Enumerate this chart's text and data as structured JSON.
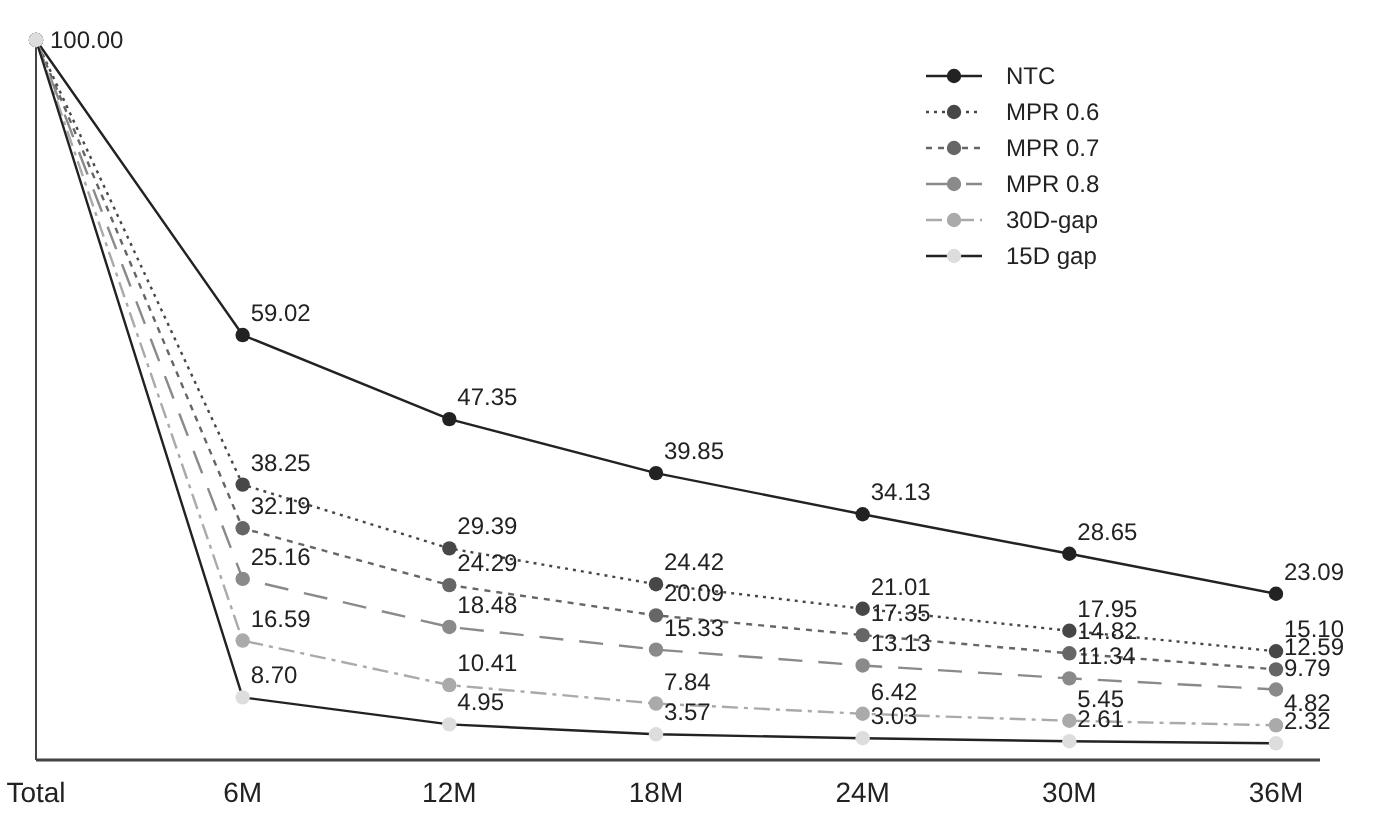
{
  "chart_data": {
    "type": "line",
    "categories": [
      "Total",
      "6M",
      "12M",
      "18M",
      "24M",
      "30M",
      "36M"
    ],
    "legend": "top right",
    "marker": "circle",
    "tick_labels": "x",
    "series": [
      {
        "name": "NTC",
        "color": "#222222",
        "line_style": "solid",
        "values": [
          100,
          59.02,
          47.35,
          39.85,
          34.13,
          28.65,
          23.09
        ],
        "value_labels": [
          "100.00",
          "59.02",
          "47.35",
          "39.85",
          "34.13",
          "28.65",
          "23.09"
        ]
      },
      {
        "name": "MPR 0.6",
        "color": "#474747",
        "line_style": "dotted",
        "values": [
          100,
          38.25,
          29.39,
          24.42,
          21.01,
          17.95,
          15.1
        ],
        "value_labels": [
          null,
          "38.25",
          "29.39",
          "24.42",
          "21.01",
          "17.95",
          "15.10"
        ]
      },
      {
        "name": "MPR 0.7",
        "color": "#666666",
        "line_style": "dashed",
        "values": [
          100,
          32.19,
          24.29,
          20.09,
          17.35,
          14.82,
          12.59
        ],
        "value_labels": [
          null,
          "32.19",
          "24.29",
          "20.09",
          "17.35",
          "14.82",
          "12.59"
        ]
      },
      {
        "name": "MPR 0.8",
        "color": "#8a8a8a",
        "line_style": "longdashed",
        "values": [
          100,
          25.16,
          18.48,
          15.33,
          13.13,
          11.34,
          9.79
        ],
        "value_labels": [
          null,
          "25.16",
          "18.48",
          "15.33",
          "13.13",
          "11.34",
          "9.79"
        ]
      },
      {
        "name": "30D-gap",
        "color": "#aaaaaa",
        "line_style": "dashdot",
        "values": [
          100,
          16.59,
          10.41,
          7.84,
          6.42,
          5.45,
          4.82
        ],
        "value_labels": [
          null,
          "16.59",
          "10.41",
          "7.84",
          "6.42",
          "5.45",
          "4.82"
        ]
      },
      {
        "name": "15D gap",
        "color": "#dddddd",
        "line_style": "solid",
        "values": [
          100,
          8.7,
          4.95,
          3.57,
          3.03,
          2.61,
          2.32
        ],
        "value_labels": [
          null,
          "8.70",
          "4.95",
          "3.57",
          "3.03",
          "2.61",
          "2.32"
        ]
      }
    ]
  }
}
